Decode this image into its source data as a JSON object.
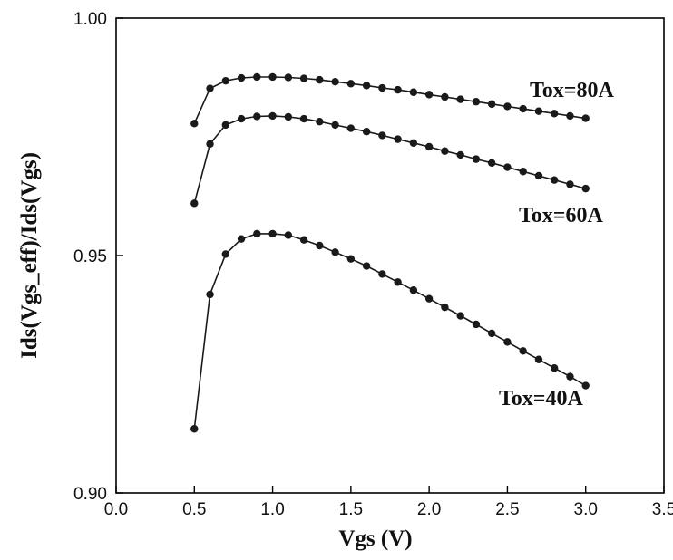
{
  "chart_data": {
    "type": "line",
    "xlabel": "Vgs (V)",
    "ylabel": "Ids(Vgs_eff)/Ids(Vgs)",
    "xlim": [
      0.0,
      3.5
    ],
    "ylim": [
      0.9,
      1.0
    ],
    "x_ticks": [
      "0.0",
      "0.5",
      "1.0",
      "1.5",
      "2.0",
      "2.5",
      "3.0",
      "3.5"
    ],
    "y_ticks": [
      "0.90",
      "0.95",
      "1.00"
    ],
    "grid": false,
    "legend": "none",
    "series": [
      {
        "name": "Tox=80A",
        "x": [
          0.5,
          0.6,
          0.7,
          0.8,
          0.9,
          1.0,
          1.1,
          1.2,
          1.3,
          1.4,
          1.5,
          1.6,
          1.7,
          1.8,
          1.9,
          2.0,
          2.1,
          2.2,
          2.3,
          2.4,
          2.5,
          2.6,
          2.7,
          2.8,
          2.9,
          3.0
        ],
        "y": [
          0.9778,
          0.9852,
          0.9868,
          0.9874,
          0.9876,
          0.9876,
          0.9875,
          0.9873,
          0.987,
          0.9866,
          0.9862,
          0.9858,
          0.9853,
          0.9849,
          0.9844,
          0.9839,
          0.9834,
          0.9829,
          0.9824,
          0.9819,
          0.9814,
          0.9809,
          0.9804,
          0.9799,
          0.9794,
          0.9789
        ]
      },
      {
        "name": "Tox=60A",
        "x": [
          0.5,
          0.6,
          0.7,
          0.8,
          0.9,
          1.0,
          1.1,
          1.2,
          1.3,
          1.4,
          1.5,
          1.6,
          1.7,
          1.8,
          1.9,
          2.0,
          2.1,
          2.2,
          2.3,
          2.4,
          2.5,
          2.6,
          2.7,
          2.8,
          2.9,
          3.0
        ],
        "y": [
          0.961,
          0.9735,
          0.9775,
          0.9788,
          0.9793,
          0.9794,
          0.9792,
          0.9788,
          0.9782,
          0.9775,
          0.9768,
          0.9761,
          0.9753,
          0.9745,
          0.9737,
          0.9729,
          0.972,
          0.9712,
          0.9703,
          0.9695,
          0.9686,
          0.9677,
          0.9668,
          0.9659,
          0.965,
          0.9641
        ]
      },
      {
        "name": "Tox=40A",
        "x": [
          0.5,
          0.6,
          0.7,
          0.8,
          0.9,
          1.0,
          1.1,
          1.2,
          1.3,
          1.4,
          1.5,
          1.6,
          1.7,
          1.8,
          1.9,
          2.0,
          2.1,
          2.2,
          2.3,
          2.4,
          2.5,
          2.6,
          2.7,
          2.8,
          2.9,
          3.0
        ],
        "y": [
          0.9135,
          0.9418,
          0.9503,
          0.9535,
          0.9546,
          0.9546,
          0.9543,
          0.9533,
          0.9521,
          0.9507,
          0.9493,
          0.9478,
          0.9461,
          0.9444,
          0.9427,
          0.9409,
          0.9391,
          0.9373,
          0.9355,
          0.9336,
          0.9318,
          0.9299,
          0.9281,
          0.9263,
          0.9245,
          0.9226
        ]
      }
    ],
    "series_labels": [
      "Tox=80A",
      "Tox=60A",
      "Tox=40A"
    ],
    "colors": {
      "line": "#1a1a1a",
      "marker": "#1a1a1a",
      "axis": "#000000"
    }
  }
}
